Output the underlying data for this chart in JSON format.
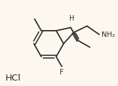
{
  "bg_color": "#fdf8ef",
  "bond_color": "#2a2a2a",
  "text_color": "#2a2a2a",
  "bond_lw": 1.3,
  "font_size": 7.5,
  "font_size_hcl": 9.5,
  "hcl_text": "HCl",
  "F_label": "F",
  "H_label": "H",
  "NH2_label": "NH",
  "subscript2": "2"
}
